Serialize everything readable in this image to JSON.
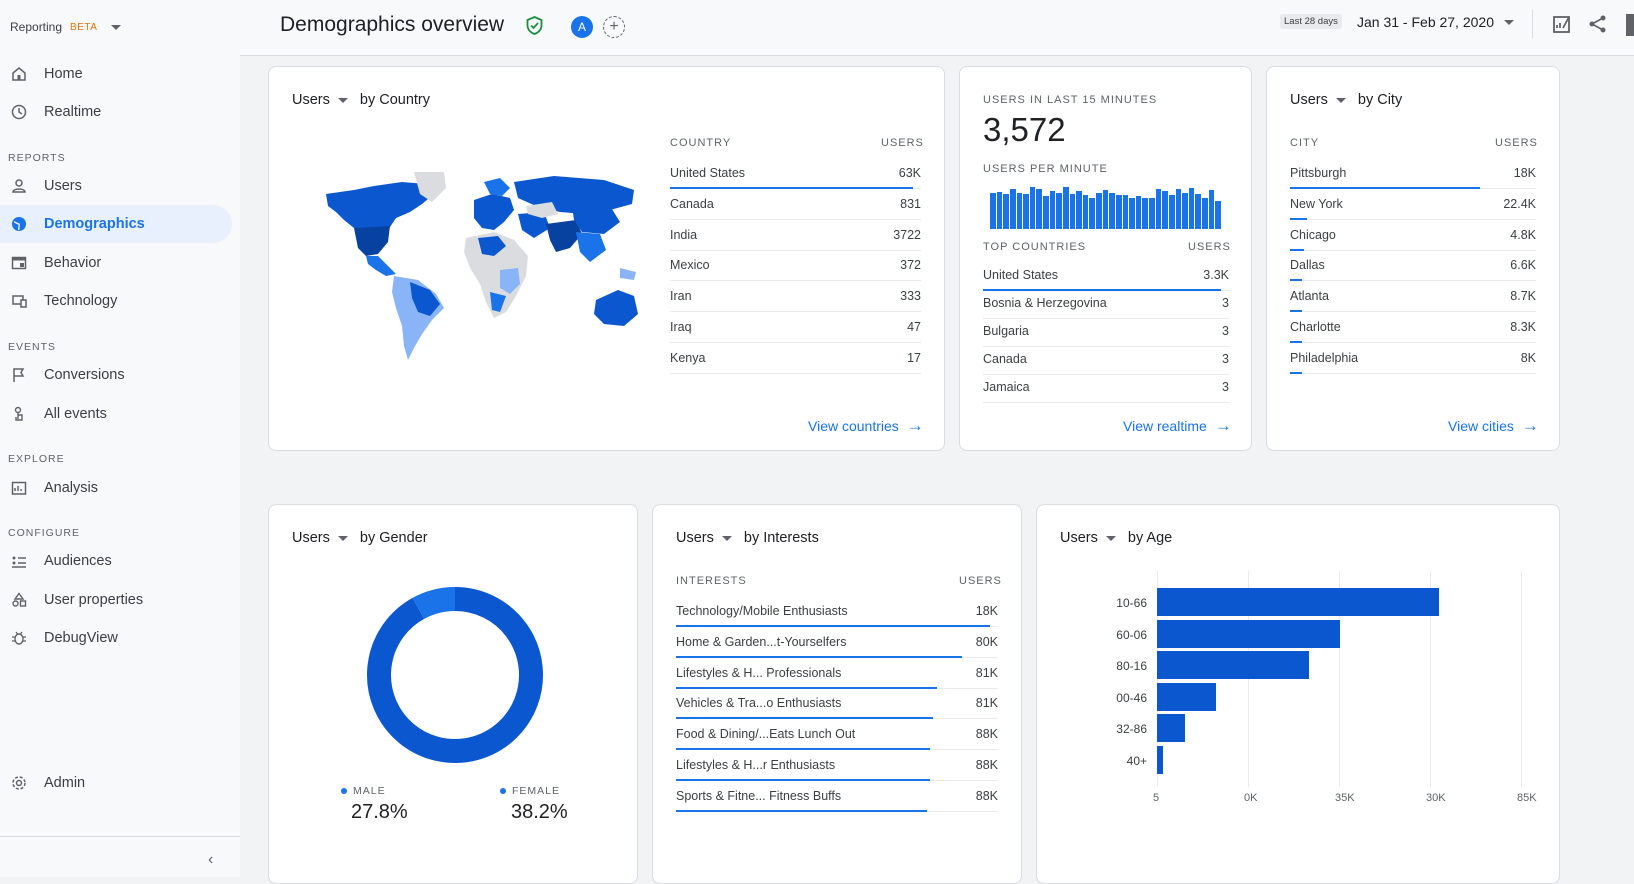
{
  "sidebar": {
    "brand": "Reporting",
    "beta": "BETA",
    "home": "Home",
    "realtime": "Realtime",
    "reports_section": "REPORTS",
    "users": "Users",
    "demographics": "Demographics",
    "behavior": "Behavior",
    "technology": "Technology",
    "events_section": "EVENTS",
    "conversions": "Conversions",
    "all_events": "All events",
    "explore_section": "EXPLORE",
    "analysis": "Analysis",
    "configure_section": "CONFIGURE",
    "audiences": "Audiences",
    "user_properties": "User properties",
    "debugview": "DebugView",
    "admin": "Admin"
  },
  "header": {
    "title": "Demographics overview",
    "avatar": "A",
    "date_badge": "Last 28 days",
    "date_range": "Jan 31 - Feb 27, 2020"
  },
  "country_card": {
    "metric": "Users",
    "dimension": "by Country",
    "col_country": "COUNTRY",
    "col_users": "USERS",
    "rows": [
      {
        "name": "United States",
        "value": "63K",
        "share": 1.0
      },
      {
        "name": "Canada",
        "value": "831",
        "share": 0.0
      },
      {
        "name": "India",
        "value": "3722",
        "share": 0.0
      },
      {
        "name": "Mexico",
        "value": "372",
        "share": 0.0
      },
      {
        "name": "Iran",
        "value": "333",
        "share": 0.0
      },
      {
        "name": "Iraq",
        "value": "47",
        "share": 0.0
      },
      {
        "name": "Kenya",
        "value": "17",
        "share": 0.0
      }
    ],
    "link": "View countries"
  },
  "realtime_card": {
    "label_users": "USERS IN LAST 15 MINUTES",
    "count": "3,572",
    "label_per_minute": "USERS PER MINUTE",
    "per_minute": [
      34,
      35,
      33,
      38,
      34,
      33,
      40,
      38,
      31,
      36,
      34,
      40,
      33,
      36,
      32,
      30,
      34,
      37,
      34,
      32,
      32,
      30,
      31,
      30,
      30,
      38,
      36,
      32,
      38,
      34,
      39,
      33,
      30,
      37,
      27
    ],
    "col_countries": "TOP COUNTRIES",
    "col_users": "USERS",
    "rows": [
      {
        "name": "United States",
        "value": "3.3K",
        "share": 1.0
      },
      {
        "name": "Bosnia & Herzegovina",
        "value": "3",
        "share": 0.0
      },
      {
        "name": "Bulgaria",
        "value": "3",
        "share": 0.0
      },
      {
        "name": "Canada",
        "value": "3",
        "share": 0.0
      },
      {
        "name": "Jamaica",
        "value": "3",
        "share": 0.0
      }
    ],
    "link": "View realtime"
  },
  "city_card": {
    "metric": "Users",
    "dimension": "by City",
    "col_city": "CITY",
    "col_users": "USERS",
    "rows": [
      {
        "name": "Pittsburgh",
        "value": "18K",
        "share": 0.8
      },
      {
        "name": "New York",
        "value": "22.4K",
        "share": 0.07
      },
      {
        "name": "Chicago",
        "value": "4.8K",
        "share": 0.06
      },
      {
        "name": "Dallas",
        "value": "6.6K",
        "share": 0.05
      },
      {
        "name": "Atlanta",
        "value": "8.7K",
        "share": 0.05
      },
      {
        "name": "Charlotte",
        "value": "8.3K",
        "share": 0.05
      },
      {
        "name": "Philadelphia",
        "value": "8K",
        "share": 0.05
      }
    ],
    "link": "View cities"
  },
  "gender_card": {
    "metric": "Users",
    "dimension": "by Gender",
    "male_label": "MALE",
    "male_pct": "27.8%",
    "female_label": "FEMALE",
    "female_pct": "38.2%"
  },
  "interests_card": {
    "metric": "Users",
    "dimension": "by Interests",
    "col_interests": "INTERESTS",
    "col_users": "USERS",
    "rows": [
      {
        "name": "Technology/Mobile Enthusiasts",
        "value": "18K",
        "share": 1.0
      },
      {
        "name": "Home & Garden...t-Yourselfers",
        "value": "80K",
        "share": 0.91
      },
      {
        "name": "Lifestyles & H... Professionals",
        "value": "81K",
        "share": 0.83
      },
      {
        "name": "Vehicles & Tra...o Enthusiasts",
        "value": "81K",
        "share": 0.82
      },
      {
        "name": "Food & Dining/...Eats Lunch Out",
        "value": "88K",
        "share": 0.81
      },
      {
        "name": "Lifestyles & H...r Enthusiasts",
        "value": "88K",
        "share": 0.81
      },
      {
        "name": "Sports & Fitne... Fitness Buffs",
        "value": "88K",
        "share": 0.8
      }
    ]
  },
  "age_card": {
    "metric": "Users",
    "dimension": "by Age"
  },
  "chart_data": [
    {
      "type": "pie",
      "title": "",
      "categories": [
        "MALE",
        "FEMALE"
      ],
      "values": [
        27.8,
        38.2
      ],
      "display_share": [
        0.92,
        0.08
      ],
      "colors": [
        "#0b57d0",
        "#1a73e8"
      ]
    },
    {
      "type": "bar",
      "orientation": "horizontal",
      "title": "",
      "categories": [
        "10-66",
        "60-06",
        "80-16",
        "00-46",
        "32-86",
        "40+"
      ],
      "values": [
        1.0,
        0.65,
        0.54,
        0.21,
        0.1,
        0.02
      ],
      "x_ticks": [
        "5",
        "0K",
        "35K",
        "30K",
        "85K"
      ],
      "color": "#0b57d0"
    }
  ],
  "colors": {
    "accent": "#1a73e8",
    "accent_dark": "#0b57d0",
    "map_dark": "#0b57d0",
    "map_light": "#8ab4f8",
    "map_gray": "#dadce0",
    "shield": "#1e8e3e"
  }
}
